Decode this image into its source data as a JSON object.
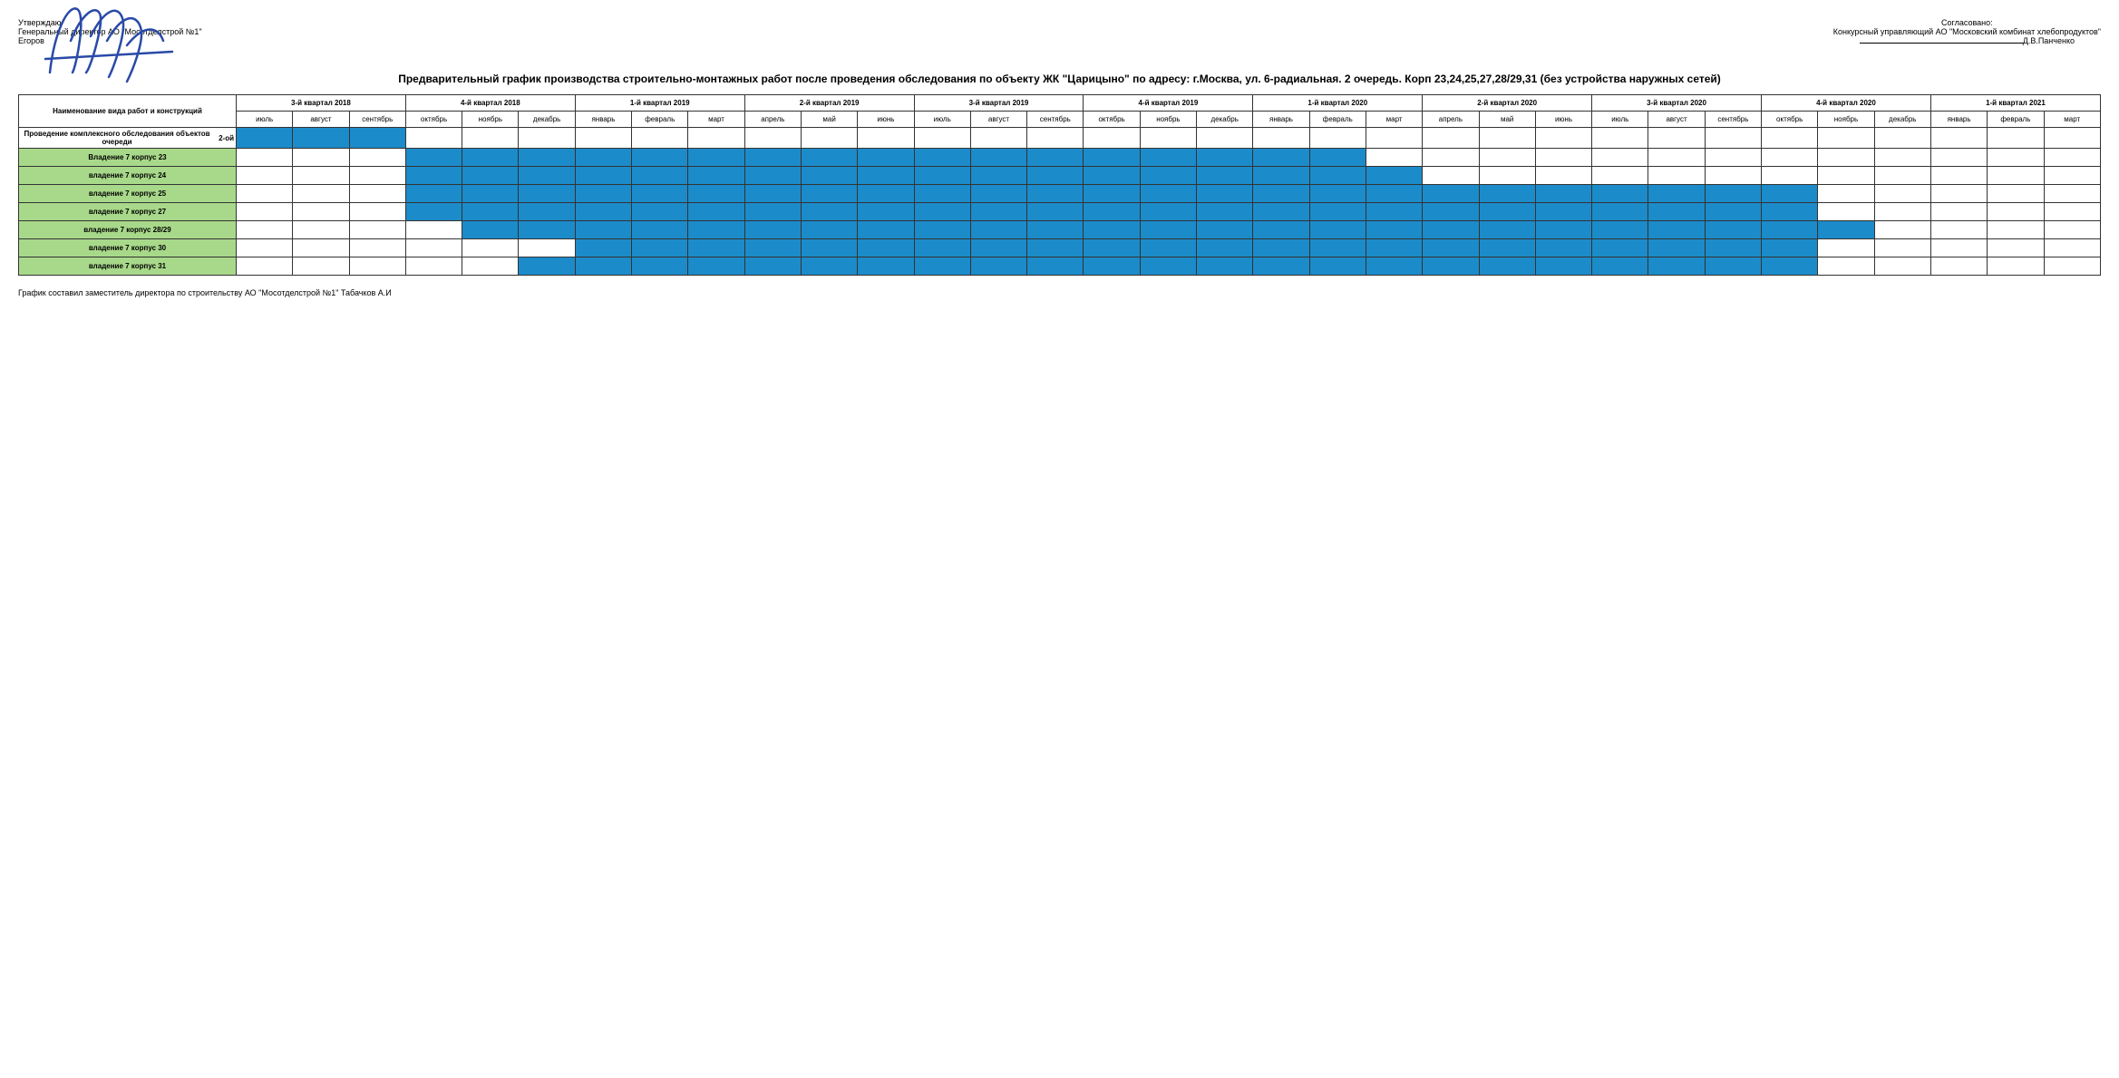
{
  "approval_left": {
    "line1": "Утверждаю",
    "line2": "Генеральный директор АО \"Мосотделстрой №1\"",
    "line3": "Егоров"
  },
  "approval_right": {
    "line1": "Согласовано:",
    "line2": "Конкурсный управляющий АО \"Московский комбинат хлебопродуктов\"",
    "line3": "Д.В.Панченко"
  },
  "title": "Предварительный график производства строительно-монтажных работ после проведения обследования по объекту ЖК \"Царицыно\" по адресу: г.Москва, ул. 6-радиальная. 2 очередь. Корп 23,24,25,27,28/29,31 (без устройства наружных сетей)",
  "header_label": "Наименование вида работ и конструкций",
  "quarters": [
    "3-й квартал 2018",
    "4-й квартал 2018",
    "1-й квартал 2019",
    "2-й квартал 2019",
    "3-й квартал 2019",
    "4-й квартал 2019",
    "1-й квартал 2020",
    "2-й квартал 2020",
    "3-й квартал 2020",
    "4-й квартал 2020",
    "1-й квартал 2021"
  ],
  "months": [
    "июль",
    "август",
    "сентябрь",
    "октябрь",
    "ноябрь",
    "декабрь",
    "январь",
    "февраль",
    "март",
    "апрель",
    "май",
    "июнь",
    "июль",
    "август",
    "сентябрь",
    "октябрь",
    "ноябрь",
    "декабрь",
    "январь",
    "февраль",
    "март",
    "апрель",
    "май",
    "июнь",
    "июль",
    "август",
    "сентябрь",
    "октябрь",
    "ноябрь",
    "декабрь",
    "январь",
    "февраль",
    "март"
  ],
  "rows": [
    {
      "label": "Проведение комплексного обследования объектов очереди",
      "extra": "2-ой",
      "label_bg": "white",
      "start": 0,
      "end": 3
    },
    {
      "label": "Владение 7 корпус 23",
      "label_bg": "green",
      "start": 3,
      "end": 20
    },
    {
      "label": "владение 7 корпус 24",
      "label_bg": "green",
      "start": 3,
      "end": 21
    },
    {
      "label": "владение 7 корпус 25",
      "label_bg": "green",
      "start": 3,
      "end": 28
    },
    {
      "label": "владение 7 корпус 27",
      "label_bg": "green",
      "start": 3,
      "end": 28
    },
    {
      "label": "владение 7 корпус 28/29",
      "label_bg": "green",
      "start": 4,
      "end": 29
    },
    {
      "label": "владение 7 корпус 30",
      "label_bg": "green",
      "start": 6,
      "end": 28
    },
    {
      "label": "владение 7 корпус 31",
      "label_bg": "green",
      "start": 5,
      "end": 28
    }
  ],
  "footer": "График составил заместитель директора по строительству АО \"Мосотделстрой №1\" Табачков А.И",
  "colors": {
    "filled": "#1c8bc9",
    "green_row": "#a8d98a",
    "border": "#333333",
    "signature": "#2a4aa8"
  }
}
